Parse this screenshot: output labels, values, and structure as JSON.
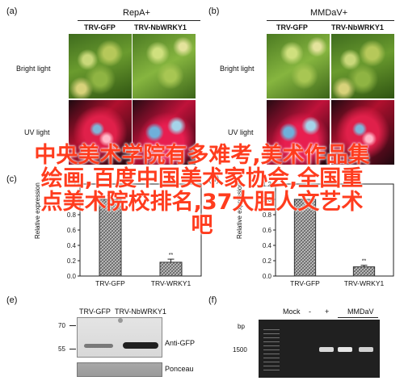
{
  "panels": {
    "a": {
      "letter": "(a)",
      "title": "RepA+",
      "col1": "TRV-GFP",
      "col2": "TRV-NbWRKY1",
      "row1": "Bright light",
      "row2": "UV light"
    },
    "b": {
      "letter": "(b)",
      "title": "MMDaV+",
      "col1": "TRV-GFP",
      "col2": "TRV-NbWRKY1",
      "row1": "Bright light",
      "row2": "UV light"
    },
    "c": {
      "letter": "(c)",
      "ylabel": "Relative expression",
      "significance": "**",
      "categories": [
        "TRV-GFP",
        "TRV-WRKY1"
      ]
    },
    "d": {
      "letter": "(d)",
      "ylabel": "Relative expression",
      "significance": "**",
      "categories": [
        "TRV-GFP",
        "TRV-WRKY1"
      ]
    },
    "e": {
      "letter": "(e)",
      "lane1": "TRV-GFP",
      "lane2": "TRV-NbWRKY1",
      "marker70": "70",
      "marker55": "55",
      "row1": "Anti-GFP",
      "row2": "Ponceau"
    },
    "f": {
      "letter": "(f)",
      "bp": "bp",
      "marker": "1500",
      "lane_mock": "Mock",
      "lane_minus": "-",
      "lane_plus": "+",
      "group": "MMDaV"
    }
  },
  "chart_data": [
    {
      "type": "bar",
      "panel": "c",
      "categories": [
        "TRV-GFP",
        "TRV-WRKY1"
      ],
      "values": [
        1.0,
        0.18
      ],
      "errors": [
        0.05,
        0.04
      ],
      "ylabel": "Relative expression",
      "yticks": [
        "0.0",
        "0.2",
        "0.4",
        "0.6",
        "0.8",
        "1.0",
        "1.2"
      ],
      "ylim": [
        0,
        1.2
      ],
      "annotation": "**"
    },
    {
      "type": "bar",
      "panel": "d",
      "categories": [
        "TRV-GFP",
        "TRV-WRKY1"
      ],
      "values": [
        1.0,
        0.12
      ],
      "errors": [
        0.07,
        0.02
      ],
      "ylabel": "Relative expression",
      "yticks": [
        "0.0",
        "0.2",
        "0.4",
        "0.6",
        "0.8",
        "1.0",
        "1.2"
      ],
      "ylim": [
        0,
        1.2
      ],
      "annotation": "**"
    }
  ],
  "watermark": {
    "line1": "中央美术学院有多难考,美术作品集",
    "line2": "绘画,百度中国美术家协会,全国重",
    "line3": "点美术院校排名,37大胆人文艺术",
    "line4": "吧"
  }
}
